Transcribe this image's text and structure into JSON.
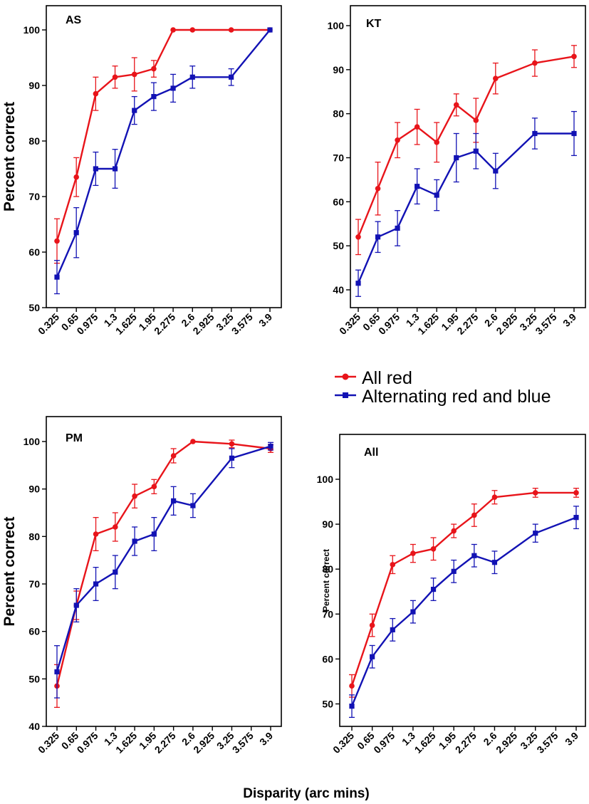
{
  "figure": {
    "xlabel": "Disparity (arc mins)",
    "colors": {
      "red": "#e8141a",
      "blue": "#1212b4"
    },
    "legend": {
      "position": "center-right",
      "entries": [
        {
          "label": "All red",
          "color": "#e8141a",
          "marker": "circle"
        },
        {
          "label": "Alternating red and blue",
          "color": "#1212b4",
          "marker": "square"
        }
      ]
    }
  },
  "chart_data": [
    {
      "type": "line",
      "title": "AS",
      "ylabel": "Percent correct",
      "ylim": [
        50,
        100
      ],
      "yticks": [
        50,
        60,
        70,
        80,
        90,
        100
      ],
      "xticks": [
        "0.325",
        "0.65",
        "0.975",
        "1.3",
        "1.625",
        "1.95",
        "2.275",
        "2.6",
        "2.925",
        "3.25",
        "3.575",
        "3.9"
      ],
      "series": [
        {
          "name": "All red",
          "color": "#e8141a",
          "marker": "circle",
          "x": [
            0.325,
            0.65,
            0.975,
            1.3,
            1.625,
            1.95,
            2.275,
            2.6,
            3.25,
            3.9
          ],
          "y": [
            62,
            73.5,
            88.5,
            91.5,
            92,
            93,
            100,
            100,
            100,
            100
          ],
          "err": [
            4,
            3.5,
            3,
            2,
            3,
            1.5,
            0,
            0,
            0,
            0
          ]
        },
        {
          "name": "Alternating red and blue",
          "color": "#1212b4",
          "marker": "square",
          "x": [
            0.325,
            0.65,
            0.975,
            1.3,
            1.625,
            1.95,
            2.275,
            2.6,
            3.25,
            3.9
          ],
          "y": [
            55.5,
            63.5,
            75,
            75,
            85.5,
            88,
            89.5,
            91.5,
            91.5,
            100
          ],
          "err": [
            3,
            4.5,
            3,
            3.5,
            2.5,
            2.5,
            2.5,
            2,
            1.5,
            0
          ]
        }
      ]
    },
    {
      "type": "line",
      "title": "KT",
      "ylabel": "",
      "ylim": [
        40,
        100
      ],
      "yticks": [
        40,
        50,
        60,
        70,
        80,
        90,
        100
      ],
      "xticks": [
        "0.325",
        "0.65",
        "0.975",
        "1.3",
        "1.625",
        "1.95",
        "2.275",
        "2.6",
        "2.925",
        "3.25",
        "3.575",
        "3.9"
      ],
      "series": [
        {
          "name": "All red",
          "color": "#e8141a",
          "marker": "circle",
          "x": [
            0.325,
            0.65,
            0.975,
            1.3,
            1.625,
            1.95,
            2.275,
            2.6,
            3.25,
            3.9
          ],
          "y": [
            52,
            63,
            74,
            77,
            73.5,
            82,
            78.5,
            88,
            91.5,
            93
          ],
          "err": [
            4,
            6,
            4,
            4,
            4.5,
            2.5,
            5,
            3.5,
            3,
            2.5
          ]
        },
        {
          "name": "Alternating red and blue",
          "color": "#1212b4",
          "marker": "square",
          "x": [
            0.325,
            0.65,
            0.975,
            1.3,
            1.625,
            1.95,
            2.275,
            2.6,
            3.25,
            3.9
          ],
          "y": [
            41.5,
            52,
            54,
            63.5,
            61.5,
            70,
            71.5,
            67,
            75.5,
            75.5
          ],
          "err": [
            3,
            3.5,
            4,
            4,
            3.5,
            5.5,
            4,
            4,
            3.5,
            5
          ]
        }
      ]
    },
    {
      "type": "line",
      "title": "PM",
      "ylabel": "Percent correct",
      "ylim": [
        40,
        100
      ],
      "yticks": [
        40,
        50,
        60,
        70,
        80,
        90,
        100
      ],
      "xticks": [
        "0.325",
        "0.65",
        "0.975",
        "1.3",
        "1.625",
        "1.95",
        "2.275",
        "2.6",
        "2.925",
        "3.25",
        "3.575",
        "3.9"
      ],
      "series": [
        {
          "name": "All red",
          "color": "#e8141a",
          "marker": "circle",
          "x": [
            0.325,
            0.65,
            0.975,
            1.3,
            1.625,
            1.95,
            2.275,
            2.6,
            3.25,
            3.9
          ],
          "y": [
            48.5,
            65.5,
            80.5,
            82,
            88.5,
            90.5,
            97,
            100,
            99.5,
            98.5
          ],
          "err": [
            4.5,
            3,
            3.5,
            3,
            2.5,
            1.5,
            1.5,
            0,
            0.8,
            0.8
          ]
        },
        {
          "name": "Alternating red and blue",
          "color": "#1212b4",
          "marker": "square",
          "x": [
            0.325,
            0.65,
            0.975,
            1.3,
            1.625,
            1.95,
            2.275,
            2.6,
            3.25,
            3.9
          ],
          "y": [
            51.5,
            65.5,
            70,
            72.5,
            79,
            80.5,
            87.5,
            86.5,
            96.5,
            99
          ],
          "err": [
            5.5,
            3.5,
            3.5,
            3.5,
            3,
            3.5,
            3,
            2.5,
            2,
            0.8
          ]
        }
      ]
    },
    {
      "type": "line",
      "title": "All",
      "ylabel": "Percent correct",
      "ylim": [
        45,
        100
      ],
      "yticks": [
        50,
        60,
        70,
        80,
        90,
        100
      ],
      "xticks": [
        "0.325",
        "0.65",
        "0.975",
        "1.3",
        "1.625",
        "1.95",
        "2.275",
        "2.6",
        "2.925",
        "3.25",
        "3.575",
        "3.9"
      ],
      "series": [
        {
          "name": "All red",
          "color": "#e8141a",
          "marker": "circle",
          "x": [
            0.325,
            0.65,
            0.975,
            1.3,
            1.625,
            1.95,
            2.275,
            2.6,
            3.25,
            3.9
          ],
          "y": [
            54,
            67.5,
            81,
            83.5,
            84.5,
            88.5,
            92,
            96,
            97,
            97
          ],
          "err": [
            2.5,
            2.5,
            2,
            2,
            2.5,
            1.5,
            2.5,
            1.5,
            1,
            1
          ]
        },
        {
          "name": "Alternating red and blue",
          "color": "#1212b4",
          "marker": "square",
          "x": [
            0.325,
            0.65,
            0.975,
            1.3,
            1.625,
            1.95,
            2.275,
            2.6,
            3.25,
            3.9
          ],
          "y": [
            49.5,
            60.5,
            66.5,
            70.5,
            75.5,
            79.5,
            83,
            81.5,
            88,
            91.5
          ],
          "err": [
            2.5,
            2.5,
            2.5,
            2.5,
            2.5,
            2.5,
            2.5,
            2.5,
            2,
            2.5
          ]
        }
      ]
    }
  ]
}
